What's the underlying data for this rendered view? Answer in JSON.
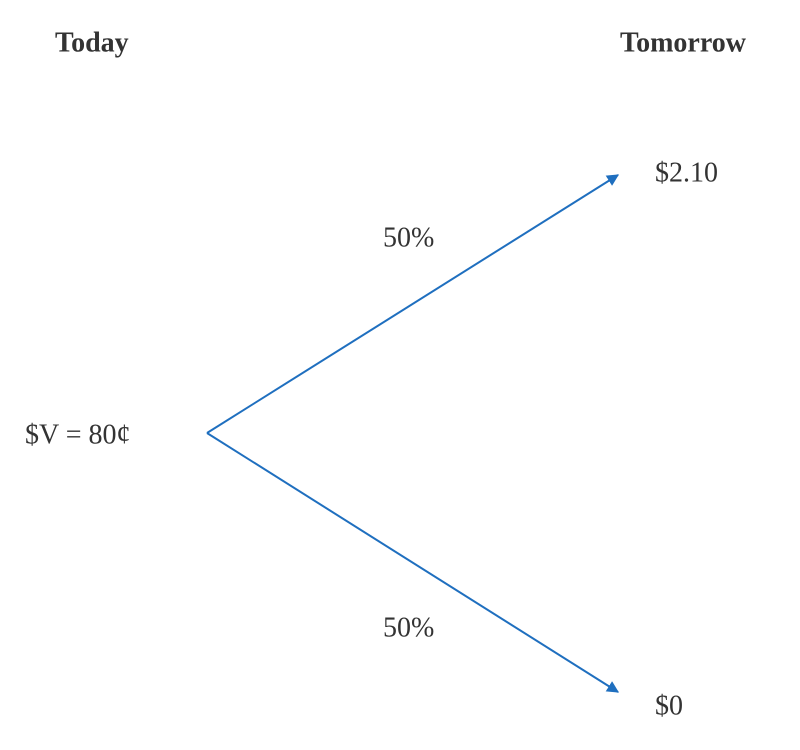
{
  "headers": {
    "left": "Today",
    "right": "Tomorrow"
  },
  "nodes": [
    {
      "label": "$V = 80¢"
    },
    {
      "label": "$2.10"
    },
    {
      "label": "$0"
    }
  ],
  "edges": [
    {
      "label": "50%"
    },
    {
      "label": "50%"
    }
  ]
}
